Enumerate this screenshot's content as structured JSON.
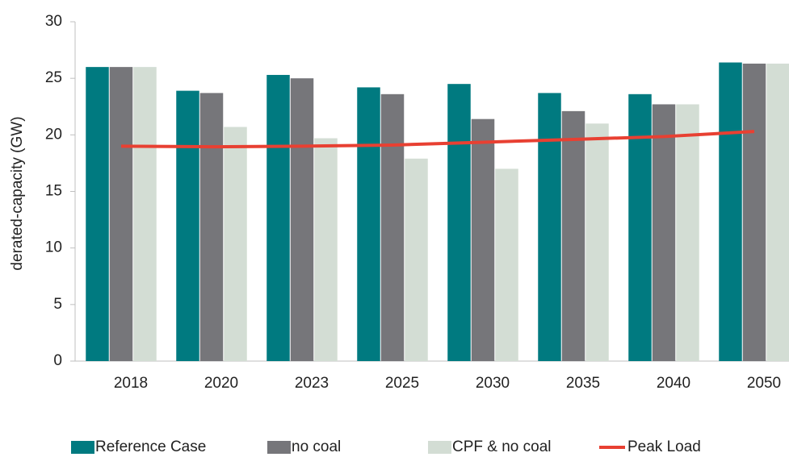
{
  "chart_data": {
    "type": "bar",
    "y_label": "derated-capacity (GW)",
    "categories": [
      "2018",
      "2020",
      "2023",
      "2025",
      "2030",
      "2035",
      "2040",
      "2050"
    ],
    "series": [
      {
        "name": "Reference Case",
        "color": "#007a80",
        "values": [
          26,
          23.9,
          25.3,
          24.2,
          24.5,
          23.7,
          23.6,
          26.4
        ]
      },
      {
        "name": "no coal",
        "color": "#76767a",
        "values": [
          26,
          23.7,
          25,
          23.6,
          21.4,
          22.1,
          22.7,
          26.3
        ]
      },
      {
        "name": "CPF & no coal",
        "color": "#d3ddd4",
        "values": [
          26,
          20.7,
          19.7,
          17.9,
          17,
          21,
          22.7,
          26.3
        ]
      },
      {
        "name": "Peak Load",
        "color": "#e84032",
        "type": "line",
        "values": [
          19,
          18.95,
          19,
          19.1,
          19.35,
          19.6,
          19.85,
          20.3
        ]
      }
    ],
    "ylim": [
      0,
      30
    ],
    "yticks": [
      0,
      5,
      10,
      15,
      20,
      25,
      30
    ],
    "grid": false,
    "legend": "bottom"
  }
}
